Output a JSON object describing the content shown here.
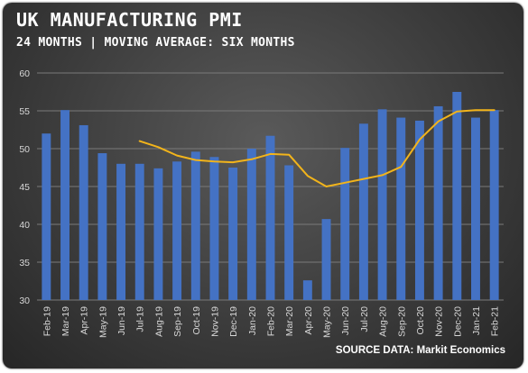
{
  "chart_data": {
    "type": "bar",
    "title": "UK MANUFACTURING PMI",
    "subtitle": "24 MONTHS | MOVING AVERAGE: SIX MONTHS",
    "categories": [
      "Feb-19",
      "Mar-19",
      "Apr-19",
      "May-19",
      "Jun-19",
      "Jul-19",
      "Aug-19",
      "Sep-19",
      "Oct-19",
      "Nov-19",
      "Dec-19",
      "Jan-20",
      "Feb-20",
      "Mar-20",
      "Apr-20",
      "May-20",
      "Jun-20",
      "Jul-20",
      "Aug-20",
      "Sep-20",
      "Oct-20",
      "Nov-20",
      "Dec-20",
      "Jan-21",
      "Feb-21"
    ],
    "series": [
      {
        "kind": "bar",
        "color": "#4472c4",
        "values": [
          52.0,
          55.1,
          53.1,
          49.4,
          48.0,
          48.0,
          47.4,
          48.3,
          49.6,
          48.9,
          47.5,
          50.0,
          51.7,
          47.8,
          32.6,
          40.7,
          50.1,
          53.3,
          55.2,
          54.1,
          53.7,
          55.6,
          57.5,
          54.1,
          55.1
        ]
      },
      {
        "kind": "line",
        "color": "#f2b41b",
        "values": [
          null,
          null,
          null,
          null,
          null,
          51.0,
          50.2,
          49.1,
          48.5,
          48.3,
          48.2,
          48.6,
          49.3,
          49.2,
          46.4,
          45.0,
          45.5,
          46.0,
          46.5,
          47.6,
          51.2,
          53.6,
          54.9,
          55.1,
          55.1
        ]
      }
    ],
    "ylim": [
      30,
      60
    ],
    "yticks": [
      "30",
      "35",
      "40",
      "45",
      "50",
      "55",
      "60"
    ],
    "grid": true,
    "source": "SOURCE DATA: Markit Economics"
  }
}
